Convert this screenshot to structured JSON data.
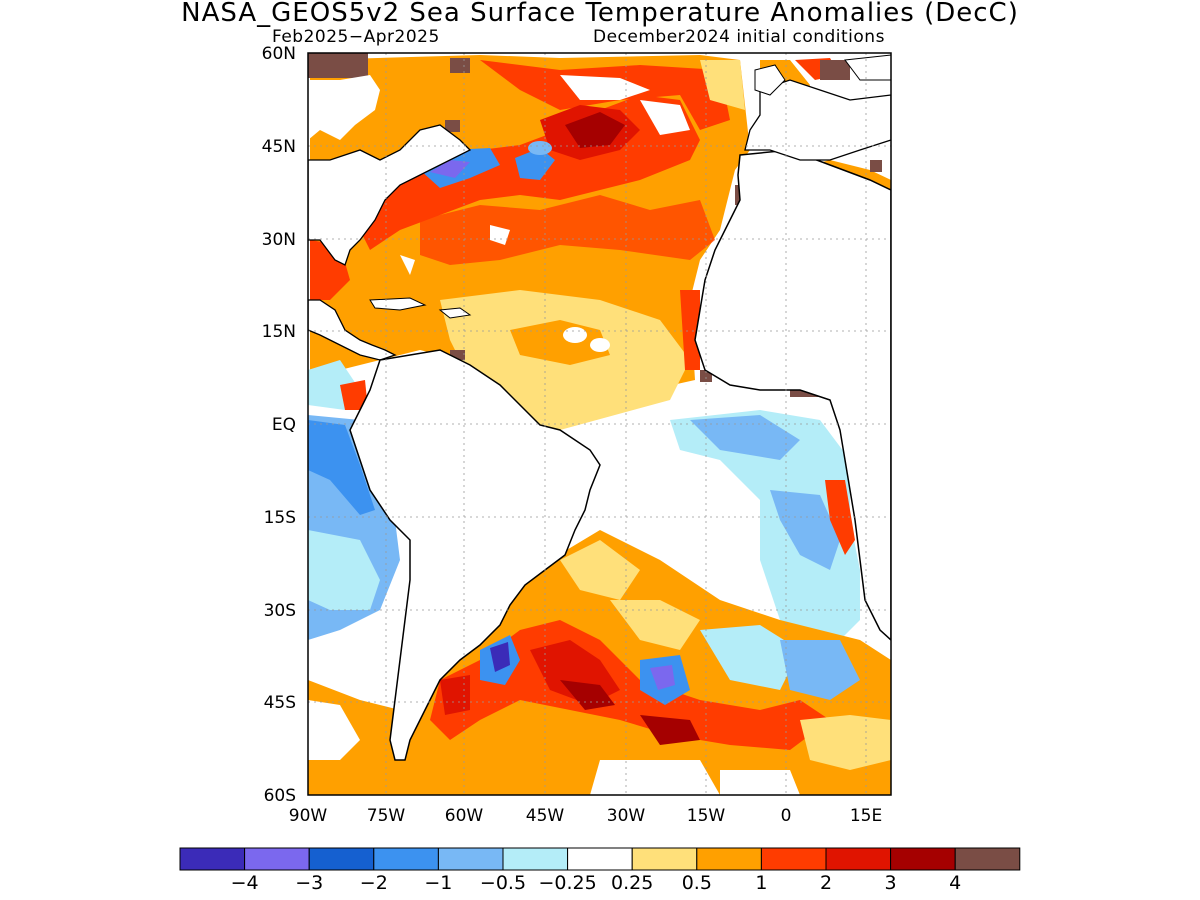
{
  "title": "NASA_GEOS5v2 Sea Surface Temperature Anomalies (DecC)",
  "subtitle_left": "Feb2025−Apr2025",
  "subtitle_right": "December2024 initial conditions",
  "lat_ticks": [
    "60N",
    "45N",
    "30N",
    "15N",
    "EQ",
    "15S",
    "30S",
    "45S",
    "60S"
  ],
  "lon_ticks": [
    "90W",
    "75W",
    "60W",
    "45W",
    "30W",
    "15W",
    "0",
    "15E"
  ],
  "colorbar": {
    "colors": [
      "#3b2bb8",
      "#7b68ee",
      "#1560d0",
      "#3c92f0",
      "#78b8f5",
      "#b4edf8",
      "#ffffff",
      "#ffe07a",
      "#ffa000",
      "#ff3c00",
      "#e01400",
      "#a50000",
      "#7a4d45"
    ],
    "labels": [
      "−4",
      "−3",
      "−2",
      "−1",
      "−0.5",
      "−0.25",
      "0.25",
      "0.5",
      "1",
      "2",
      "3",
      "4"
    ]
  }
}
